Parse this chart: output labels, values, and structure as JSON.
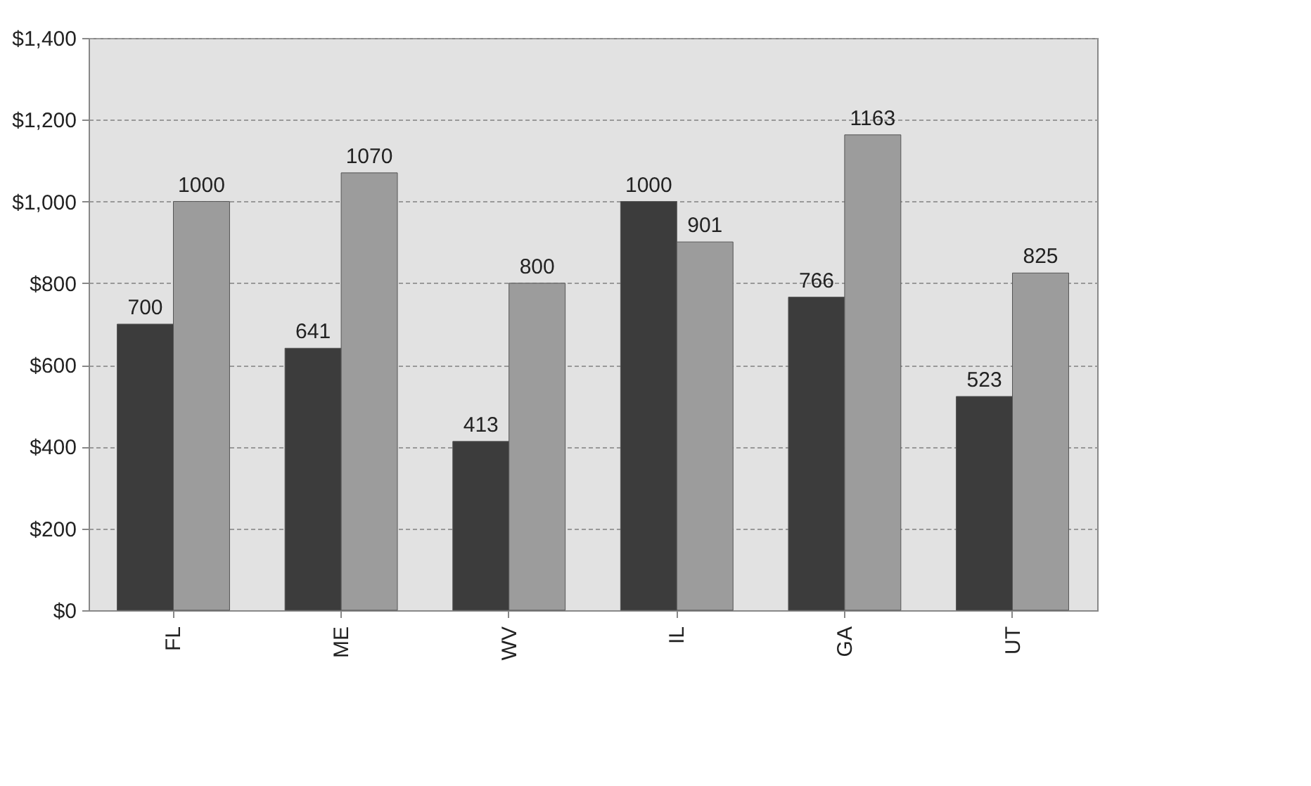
{
  "chart_data": {
    "type": "bar",
    "categories": [
      "FL",
      "ME",
      "WV",
      "IL",
      "GA",
      "UT"
    ],
    "series": [
      {
        "color": "#3c3c3c",
        "values": [
          700,
          641,
          413,
          1000,
          766,
          523
        ]
      },
      {
        "color": "#9c9c9c",
        "values": [
          1000,
          1070,
          800,
          901,
          1163,
          825
        ]
      }
    ],
    "ylim": [
      0,
      1400
    ],
    "yticks": [
      {
        "value": 0,
        "label": "$0"
      },
      {
        "value": 200,
        "label": "$200"
      },
      {
        "value": 400,
        "label": "$400"
      },
      {
        "value": 600,
        "label": "$600"
      },
      {
        "value": 800,
        "label": "$800"
      },
      {
        "value": 1000,
        "label": "$1,000"
      },
      {
        "value": 1200,
        "label": "$1,200"
      },
      {
        "value": 1400,
        "label": "$1,400"
      }
    ],
    "grid": "y",
    "data_labels": true,
    "legend": false
  }
}
